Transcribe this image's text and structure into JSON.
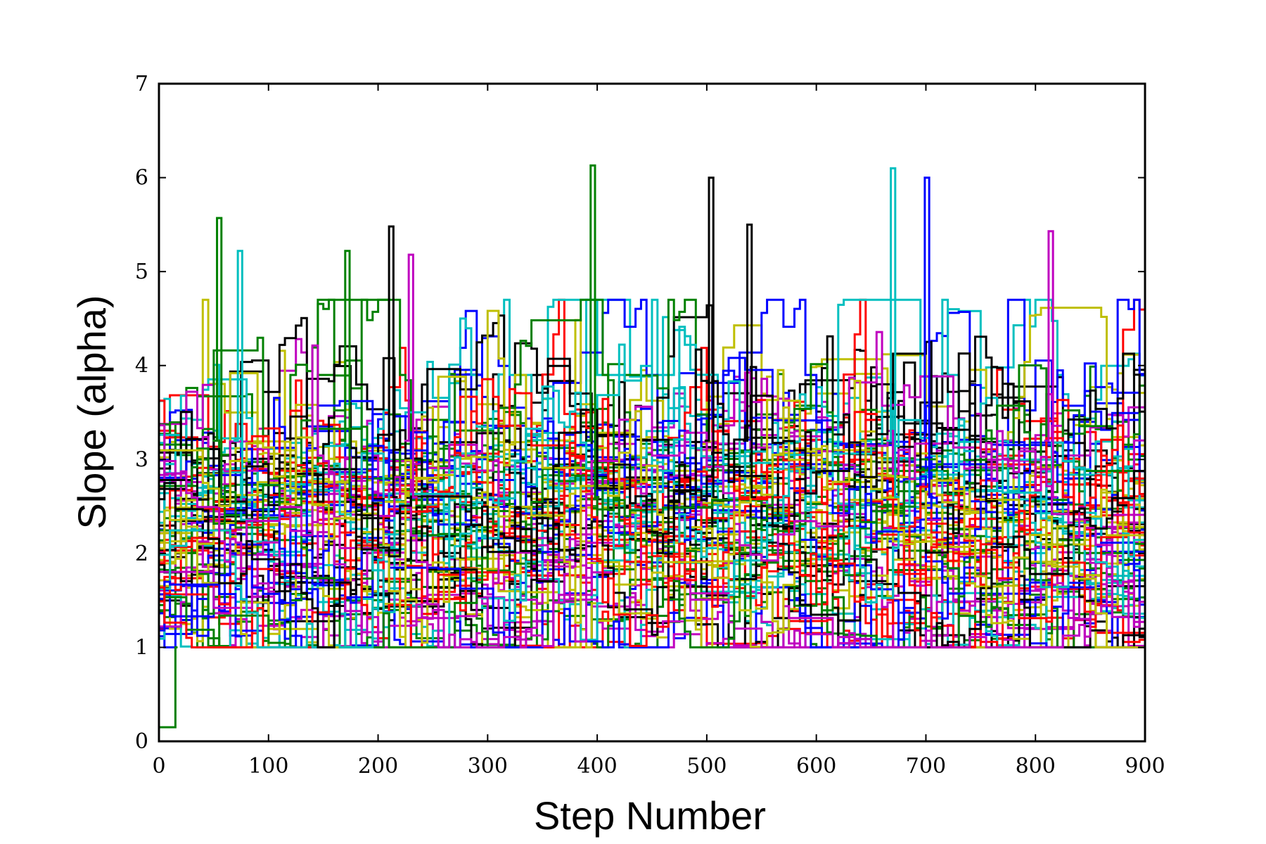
{
  "chart_data": {
    "type": "line",
    "title": "",
    "xlabel": "Step Number",
    "ylabel": "Slope (alpha)",
    "xlim": [
      0,
      900
    ],
    "ylim": [
      0,
      7
    ],
    "xticks": [
      "0",
      "100",
      "200",
      "300",
      "400",
      "500",
      "600",
      "700",
      "800",
      "900"
    ],
    "yticks": [
      "0",
      "1",
      "2",
      "3",
      "4",
      "5",
      "6",
      "7"
    ],
    "grid": false,
    "legend": "none",
    "series_colors": [
      "#0000ff",
      "#008000",
      "#ff0000",
      "#00bfbf",
      "#bf00bf",
      "#bfbf00",
      "#000000"
    ],
    "series_count": 70,
    "step_interval": 5,
    "value_floor": 1.0,
    "notable_features": [
      {
        "color": "#008000",
        "description": "chain starting near 0.15 for steps 0-15, then jumping to about 1",
        "x": [
          0,
          15,
          15,
          17
        ],
        "y": [
          0.15,
          0.15,
          1.0,
          1.0
        ]
      },
      {
        "color": "#008000",
        "peak_x": 55,
        "peak_y": 5.57
      },
      {
        "color": "#00bfbf",
        "peak_x": 74,
        "peak_y": 5.22
      },
      {
        "color": "#008000",
        "peak_x": 172,
        "peak_y": 5.22
      },
      {
        "color": "#000000",
        "peak_x": 212,
        "peak_y": 5.48
      },
      {
        "color": "#bf00bf",
        "peak_x": 230,
        "peak_y": 5.18
      },
      {
        "color": "#008000",
        "peak_x": 396,
        "peak_y": 6.13
      },
      {
        "color": "#000000",
        "peak_x": 504,
        "peak_y": 6.0
      },
      {
        "color": "#000000",
        "peak_x": 539,
        "peak_y": 5.5
      },
      {
        "color": "#00bfbf",
        "peak_x": 670,
        "peak_y": 6.1
      },
      {
        "color": "#0000ff",
        "peak_x": 701,
        "peak_y": 6.0
      },
      {
        "color": "#bf00bf",
        "peak_x": 814,
        "peak_y": 5.43
      }
    ]
  }
}
